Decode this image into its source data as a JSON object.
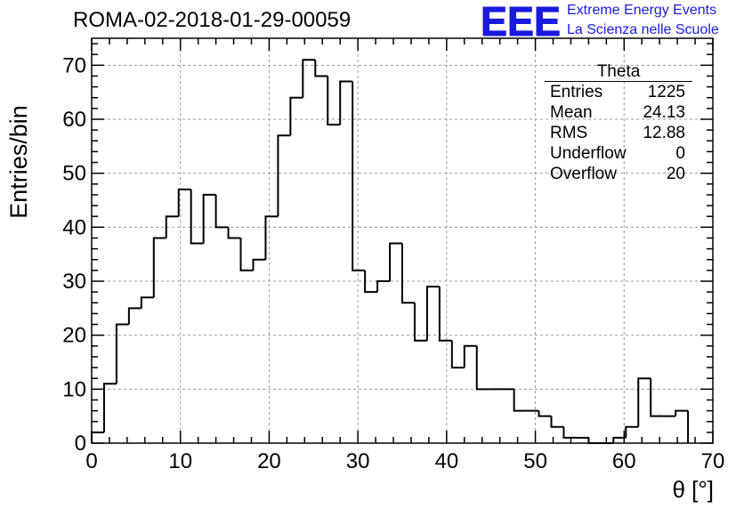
{
  "run_title": "ROMA-02-2018-01-29-00059",
  "logo": {
    "mark": "EEE",
    "line1": "Extreme Energy Events",
    "line2": "La Scienza nelle Scuole",
    "color": "#1a1adf"
  },
  "stats_box": {
    "title": "Theta",
    "rows": [
      {
        "label": "Entries",
        "value": "1225"
      },
      {
        "label": "Mean",
        "value": "24.13"
      },
      {
        "label": "RMS",
        "value": "12.88"
      },
      {
        "label": "Underflow",
        "value": "0"
      },
      {
        "label": "Overflow",
        "value": "20"
      }
    ]
  },
  "chart_data": {
    "type": "bar",
    "histogram_style": "step",
    "title": "ROMA-02-2018-01-29-00059",
    "xlabel": "θ [°]",
    "ylabel": "Entries/bin",
    "xlim": [
      0,
      70
    ],
    "ylim": [
      0,
      75
    ],
    "x_ticks": [
      0,
      10,
      20,
      30,
      40,
      50,
      60,
      70
    ],
    "y_ticks": [
      0,
      10,
      20,
      30,
      40,
      50,
      60,
      70
    ],
    "grid": true,
    "bin_edges": [
      0,
      1.4,
      2.8,
      4.2,
      5.6,
      7,
      8.4,
      9.8,
      11.2,
      12.6,
      14,
      15.4,
      16.8,
      18.2,
      19.6,
      21,
      22.4,
      23.8,
      25.2,
      26.6,
      28,
      29.4,
      30.8,
      32.2,
      33.6,
      35,
      36.4,
      37.8,
      39.2,
      40.6,
      42,
      43.4,
      44.8,
      46.2,
      47.6,
      49,
      50.4,
      51.8,
      53.2,
      54.6,
      56,
      57.4,
      58.8,
      60.2,
      61.6,
      63,
      64.4,
      65.8,
      67.2
    ],
    "values": [
      2,
      11,
      22,
      25,
      27,
      38,
      42,
      47,
      37,
      46,
      40,
      38,
      32,
      34,
      42,
      57,
      64,
      71,
      68,
      59,
      67,
      32,
      28,
      30,
      37,
      26,
      19,
      29,
      19,
      14,
      18,
      10,
      10,
      10,
      6,
      6,
      5,
      3,
      1,
      1,
      0,
      0,
      1,
      3,
      12,
      5,
      5,
      6
    ],
    "colors": {
      "line": "#000000",
      "grid": "#9a9a9a"
    }
  }
}
